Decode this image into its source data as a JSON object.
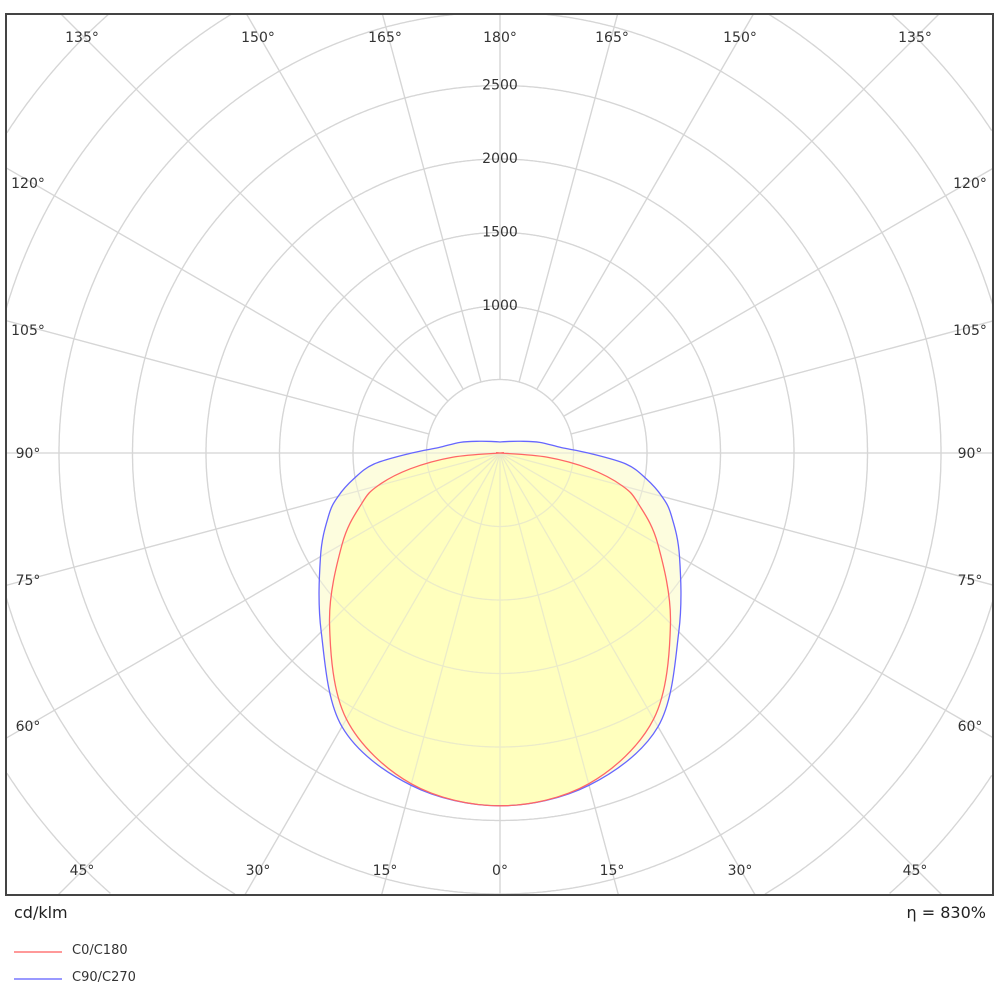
{
  "chart_data": {
    "type": "polar-line",
    "unit_label": "cd/klm",
    "efficiency_label": "η = 830%",
    "radial_ticks": [
      1000,
      1500,
      2000,
      2500
    ],
    "radial_ring_step": 500,
    "radial_max": 4500,
    "angle_labels": {
      "top": [
        "135°",
        "150°",
        "165°",
        "180°",
        "165°",
        "150°",
        "135°"
      ],
      "left": [
        "120°",
        "105°",
        "90°",
        "75°",
        "60°"
      ],
      "right": [
        "120°",
        "105°",
        "90°",
        "75°",
        "60°"
      ],
      "bottom": [
        "45°",
        "30°",
        "15°",
        "0°",
        "15°",
        "30°",
        "45°"
      ]
    },
    "grid": true,
    "gamma": [
      0,
      15,
      30,
      45,
      60,
      70,
      75,
      80,
      85,
      90,
      95,
      105,
      120,
      150,
      180
    ],
    "series": [
      {
        "name": "C0/C180",
        "color": "#ff6666",
        "fill": "#ffffb8",
        "values": [
          2400,
          2330,
          2090,
          1640,
          1240,
          1000,
          860,
          620,
          320,
          0,
          0,
          0,
          0,
          0,
          0
        ]
      },
      {
        "name": "C90/C270",
        "color": "#6666ff",
        "fill": "#fdfdd8",
        "values": [
          2400,
          2340,
          2150,
          1720,
          1410,
          1240,
          1140,
          1010,
          860,
          600,
          420,
          280,
          160,
          90,
          75
        ]
      }
    ],
    "legend_position": "bottom-left"
  }
}
